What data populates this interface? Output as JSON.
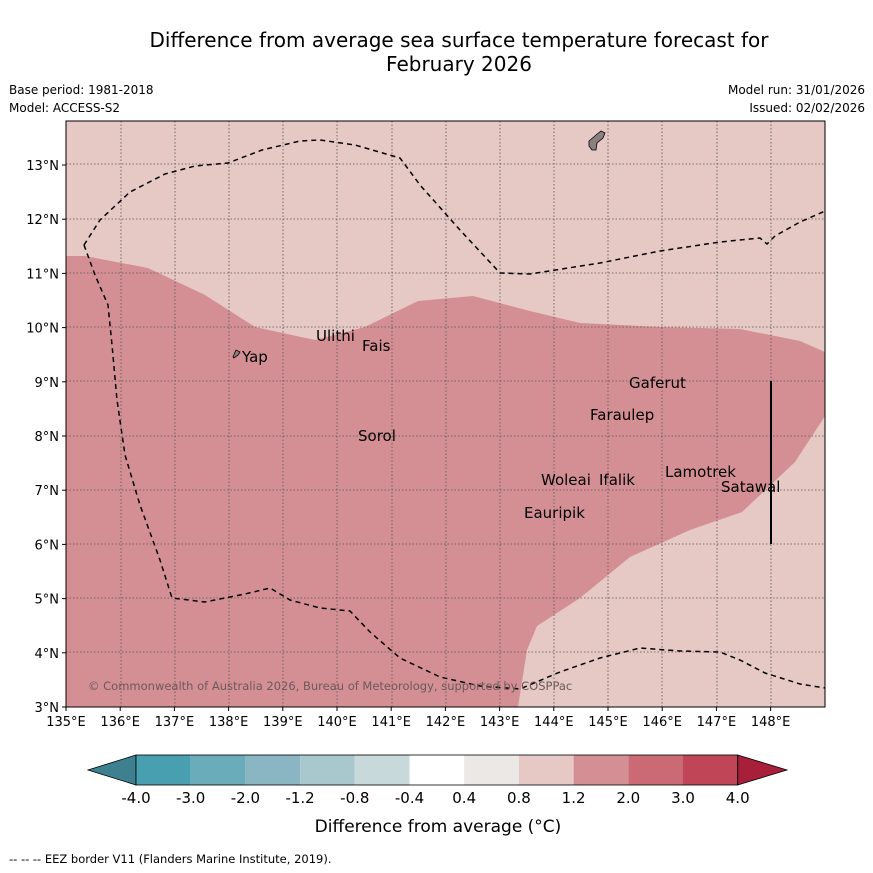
{
  "title": {
    "line1": "Difference from average sea surface temperature forecast for",
    "line2": "February 2026"
  },
  "meta": {
    "base_period": "Base period: 1981-2018",
    "model": "Model: ACCESS-S2",
    "model_run": "Model run: 31/01/2026",
    "issued": "Issued: 02/02/2026"
  },
  "map": {
    "lon_ticks": [
      "135°E",
      "136°E",
      "137°E",
      "138°E",
      "139°E",
      "140°E",
      "141°E",
      "142°E",
      "143°E",
      "144°E",
      "145°E",
      "146°E",
      "147°E",
      "148°E"
    ],
    "lat_ticks": [
      "3°N",
      "4°N",
      "5°N",
      "6°N",
      "7°N",
      "8°N",
      "9°N",
      "10°N",
      "11°N",
      "12°N",
      "13°N"
    ],
    "places": [
      {
        "name": "Ulithi",
        "label": "Ulithi"
      },
      {
        "name": "Fais",
        "label": "Fais"
      },
      {
        "name": "Yap",
        "label": "Yap"
      },
      {
        "name": "Gaferut",
        "label": "Gaferut"
      },
      {
        "name": "Faraulep",
        "label": "Faraulep"
      },
      {
        "name": "Sorol",
        "label": "Sorol"
      },
      {
        "name": "Lamotrek",
        "label": "Lamotrek"
      },
      {
        "name": "Satawal",
        "label": "Satawal"
      },
      {
        "name": "Woleai",
        "label": "Woleai"
      },
      {
        "name": "Ifalik",
        "label": "Ifalik"
      },
      {
        "name": "Eauripik",
        "label": "Eauripik"
      }
    ],
    "copyright": "© Commonwealth of Australia 2026, Bureau of Meteorology, supported by COSPPac",
    "colors": {
      "ocean_0_8_to_1_2": "#e6c8c5",
      "ocean_1_2_to_2_0": "#d48f95",
      "land": "#8c7f82"
    }
  },
  "colorbar": {
    "ticks": [
      "-4.0",
      "-3.0",
      "-2.0",
      "-1.2",
      "-0.8",
      "-0.4",
      "0.4",
      "0.8",
      "1.2",
      "2.0",
      "3.0",
      "4.0"
    ],
    "colors": [
      "#3e8090",
      "#479fb0",
      "#6aacba",
      "#8ab6c3",
      "#a9c8ce",
      "#c8d9dc",
      "#ffffff",
      "#ece8e6",
      "#e6c8c5",
      "#d48f95",
      "#cb6a75",
      "#bf4557",
      "#a81f3a"
    ],
    "label": "Difference from average (°C)"
  },
  "footer": {
    "legend": "-- -- -- EEZ border V11 (Flanders Marine Institute, 2019)."
  }
}
